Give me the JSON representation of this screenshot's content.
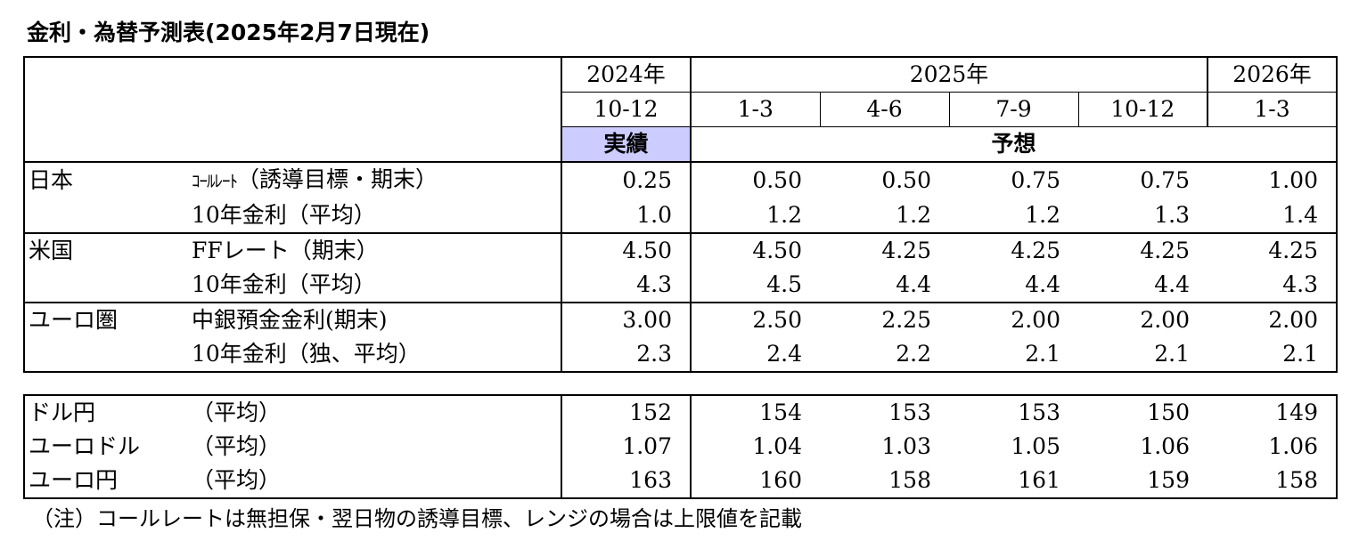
{
  "title": "金利・為替予測表(2025年2月7日現在)",
  "header": {
    "years": [
      "2024年",
      "2025年",
      "2026年"
    ],
    "quarters": [
      "10-12",
      "1-3",
      "4-6",
      "7-9",
      "10-12",
      "1-3"
    ],
    "actual_label": "実績",
    "forecast_label": "予想"
  },
  "rates": [
    {
      "country": "日本",
      "rows": [
        {
          "label_prefix": "ｺｰﾙﾚｰﾄ",
          "label": "（誘導目標・期末）",
          "values": [
            "0.25",
            "0.50",
            "0.50",
            "0.75",
            "0.75",
            "1.00"
          ]
        },
        {
          "label_prefix": "",
          "label": "10年金利（平均）",
          "values": [
            "1.0",
            "1.2",
            "1.2",
            "1.2",
            "1.3",
            "1.4"
          ]
        }
      ]
    },
    {
      "country": "米国",
      "rows": [
        {
          "label_prefix": "",
          "label": "FFレート（期末）",
          "values": [
            "4.50",
            "4.50",
            "4.25",
            "4.25",
            "4.25",
            "4.25"
          ]
        },
        {
          "label_prefix": "",
          "label": "10年金利（平均）",
          "values": [
            "4.3",
            "4.5",
            "4.4",
            "4.4",
            "4.4",
            "4.3"
          ]
        }
      ]
    },
    {
      "country": "ユーロ圏",
      "rows": [
        {
          "label_prefix": "",
          "label": "中銀預金金利(期末)",
          "values": [
            "3.00",
            "2.50",
            "2.25",
            "2.00",
            "2.00",
            "2.00"
          ]
        },
        {
          "label_prefix": "",
          "label": "10年金利（独、平均）",
          "values": [
            "2.3",
            "2.4",
            "2.2",
            "2.1",
            "2.1",
            "2.1"
          ]
        }
      ]
    }
  ],
  "fx": [
    {
      "pair": "ドル円",
      "label": "（平均）",
      "values": [
        "152",
        "154",
        "153",
        "153",
        "150",
        "149"
      ]
    },
    {
      "pair": "ユーロドル",
      "label": "（平均）",
      "values": [
        "1.07",
        "1.04",
        "1.03",
        "1.05",
        "1.06",
        "1.06"
      ]
    },
    {
      "pair": "ユーロ円",
      "label": "（平均）",
      "values": [
        "163",
        "160",
        "158",
        "161",
        "159",
        "158"
      ]
    }
  ],
  "note": "（注）コールレートは無担保・翌日物の誘導目標、レンジの場合は上限値を記載"
}
